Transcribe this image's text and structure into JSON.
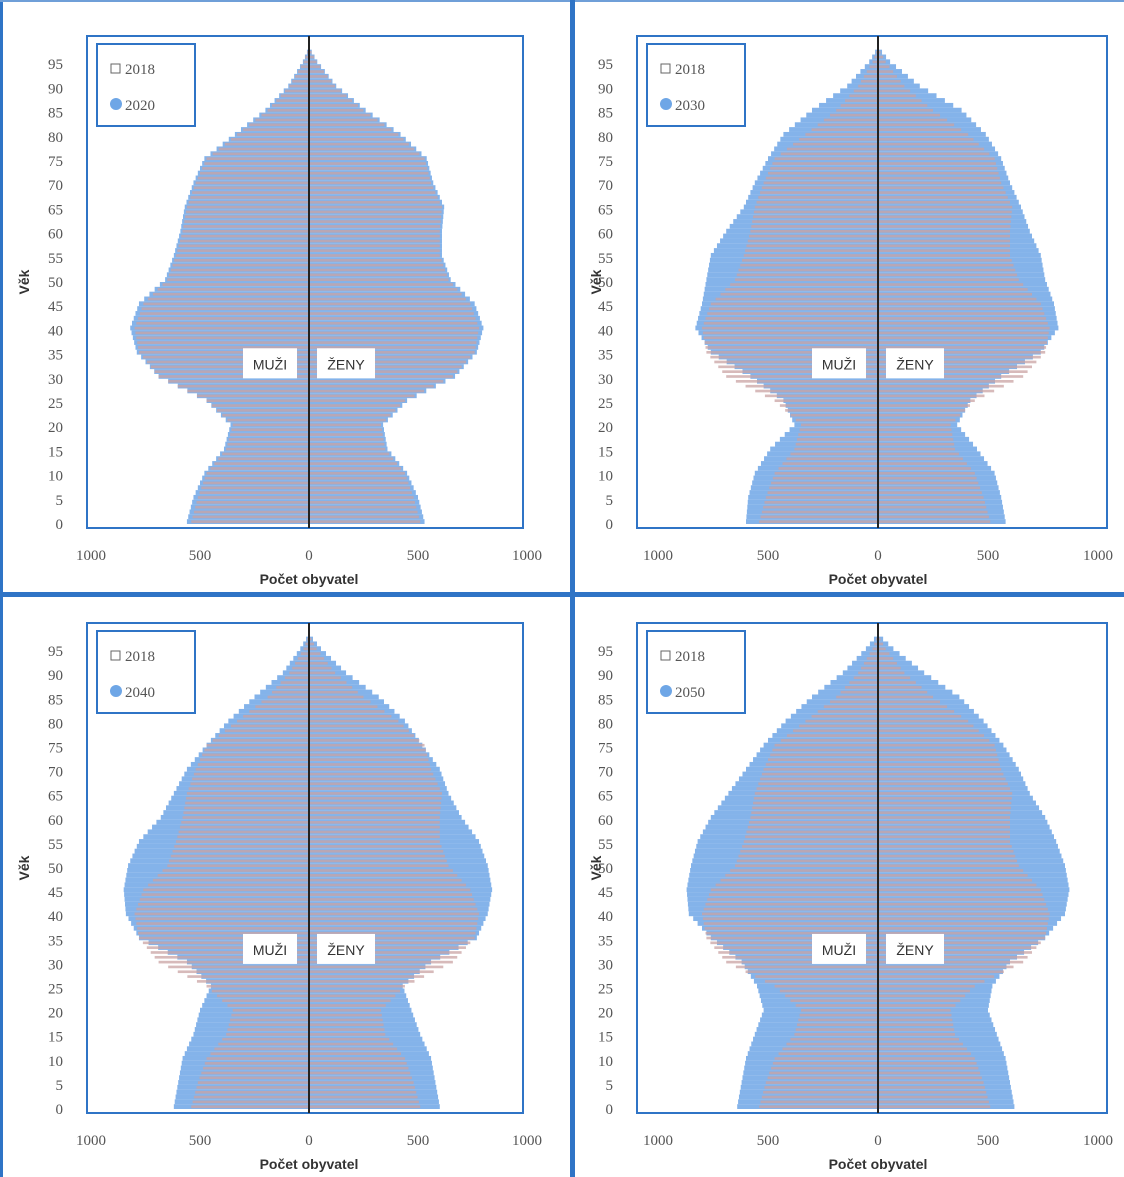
{
  "colors": {
    "frame": "#2f74c6",
    "bars_2018": "#c9a3a3",
    "bars_projection": "#6ea6e6",
    "axis": "#222222",
    "text": "#555555"
  },
  "chart_data": [
    {
      "type": "bar",
      "orientation": "population-pyramid",
      "legend": [
        "2018",
        "2020"
      ],
      "legend_position": "top-left",
      "xlabel": "Počet obyvatel",
      "ylabel": "Věk",
      "xticks": [
        "1000",
        "500",
        "0",
        "500",
        "1000"
      ],
      "xlim": [
        -1000,
        1000
      ],
      "yticks": [
        "0",
        "5",
        "10",
        "15",
        "20",
        "25",
        "30",
        "35",
        "40",
        "45",
        "50",
        "55",
        "60",
        "65",
        "70",
        "75",
        "80",
        "85",
        "90",
        "95"
      ],
      "ylim": [
        0,
        100
      ],
      "left_label": "MUŽI",
      "right_label": "ŽENY",
      "series": [
        {
          "name": "2018",
          "ages": [
            0,
            5,
            10,
            15,
            20,
            25,
            30,
            35,
            40,
            45,
            50,
            55,
            60,
            65,
            70,
            75,
            80,
            85,
            90,
            95,
            98
          ],
          "men": [
            540,
            510,
            470,
            380,
            350,
            470,
            690,
            780,
            800,
            760,
            650,
            610,
            580,
            560,
            520,
            470,
            330,
            190,
            90,
            25,
            0
          ],
          "women": [
            510,
            480,
            440,
            350,
            330,
            440,
            660,
            760,
            780,
            740,
            640,
            600,
            600,
            610,
            560,
            530,
            410,
            250,
            120,
            35,
            0
          ]
        },
        {
          "name": "2020",
          "ages": [
            0,
            5,
            10,
            15,
            20,
            25,
            30,
            35,
            40,
            45,
            50,
            55,
            60,
            65,
            70,
            75,
            80,
            85,
            90,
            95,
            98
          ],
          "men": [
            560,
            530,
            480,
            390,
            360,
            470,
            690,
            790,
            820,
            780,
            660,
            620,
            590,
            570,
            530,
            480,
            340,
            200,
            95,
            28,
            0
          ],
          "women": [
            530,
            500,
            450,
            360,
            340,
            450,
            670,
            770,
            800,
            760,
            650,
            610,
            610,
            620,
            570,
            540,
            420,
            260,
            125,
            38,
            0
          ]
        }
      ]
    },
    {
      "type": "bar",
      "orientation": "population-pyramid",
      "legend": [
        "2018",
        "2030"
      ],
      "legend_position": "top-left",
      "xlabel": "Počet obyvatel",
      "ylabel": "Věk",
      "xticks": [
        "1000",
        "500",
        "0",
        "500",
        "1000"
      ],
      "xlim": [
        -1000,
        1000
      ],
      "yticks": [
        "0",
        "5",
        "10",
        "15",
        "20",
        "25",
        "30",
        "35",
        "40",
        "45",
        "50",
        "55",
        "60",
        "65",
        "70",
        "75",
        "80",
        "85",
        "90",
        "95"
      ],
      "ylim": [
        0,
        100
      ],
      "left_label": "MUŽI",
      "right_label": "ŽENY",
      "series": [
        {
          "name": "2018",
          "ages": [
            0,
            5,
            10,
            15,
            20,
            25,
            30,
            35,
            40,
            45,
            50,
            55,
            60,
            65,
            70,
            75,
            80,
            85,
            90,
            95,
            98
          ],
          "men": [
            540,
            510,
            470,
            380,
            350,
            470,
            690,
            780,
            800,
            760,
            650,
            610,
            580,
            560,
            520,
            470,
            330,
            190,
            90,
            25,
            0
          ],
          "women": [
            510,
            480,
            440,
            350,
            330,
            440,
            660,
            760,
            780,
            740,
            640,
            600,
            600,
            610,
            560,
            530,
            410,
            250,
            120,
            35,
            0
          ]
        },
        {
          "name": "2030",
          "ages": [
            0,
            5,
            10,
            15,
            20,
            25,
            30,
            35,
            40,
            45,
            50,
            55,
            60,
            65,
            70,
            75,
            80,
            85,
            90,
            95,
            98
          ],
          "men": [
            600,
            590,
            560,
            490,
            380,
            430,
            580,
            760,
            830,
            800,
            780,
            760,
            690,
            610,
            560,
            500,
            430,
            300,
            140,
            40,
            0
          ],
          "women": [
            580,
            560,
            530,
            450,
            360,
            420,
            560,
            740,
            820,
            800,
            760,
            740,
            690,
            650,
            600,
            560,
            490,
            380,
            190,
            55,
            0
          ]
        }
      ]
    },
    {
      "type": "bar",
      "orientation": "population-pyramid",
      "legend": [
        "2018",
        "2040"
      ],
      "legend_position": "top-left",
      "xlabel": "Počet obyvatel",
      "ylabel": "Věk",
      "xticks": [
        "1000",
        "500",
        "0",
        "500",
        "1000"
      ],
      "xlim": [
        -1000,
        1000
      ],
      "yticks": [
        "0",
        "5",
        "10",
        "15",
        "20",
        "25",
        "30",
        "35",
        "40",
        "45",
        "50",
        "55",
        "60",
        "65",
        "70",
        "75",
        "80",
        "85",
        "90",
        "95"
      ],
      "ylim": [
        0,
        100
      ],
      "left_label": "MUŽI",
      "right_label": "ŽENY",
      "series": [
        {
          "name": "2018",
          "ages": [
            0,
            5,
            10,
            15,
            20,
            25,
            30,
            35,
            40,
            45,
            50,
            55,
            60,
            65,
            70,
            75,
            80,
            85,
            90,
            95,
            98
          ],
          "men": [
            540,
            510,
            470,
            380,
            350,
            470,
            690,
            780,
            800,
            760,
            650,
            610,
            580,
            560,
            520,
            470,
            330,
            190,
            90,
            25,
            0
          ],
          "women": [
            510,
            480,
            440,
            350,
            330,
            440,
            660,
            760,
            780,
            740,
            640,
            600,
            600,
            610,
            560,
            530,
            410,
            250,
            120,
            35,
            0
          ]
        },
        {
          "name": "2040",
          "ages": [
            0,
            5,
            10,
            15,
            20,
            25,
            30,
            35,
            40,
            45,
            50,
            55,
            60,
            65,
            70,
            75,
            80,
            85,
            90,
            95,
            98
          ],
          "men": [
            620,
            600,
            580,
            530,
            500,
            450,
            560,
            780,
            840,
            850,
            830,
            780,
            680,
            620,
            560,
            470,
            370,
            250,
            120,
            40,
            0
          ],
          "women": [
            600,
            580,
            560,
            510,
            470,
            430,
            560,
            770,
            820,
            840,
            820,
            780,
            700,
            640,
            600,
            520,
            440,
            320,
            170,
            55,
            0
          ]
        }
      ]
    },
    {
      "type": "bar",
      "orientation": "population-pyramid",
      "legend": [
        "2018",
        "2050"
      ],
      "legend_position": "top-left",
      "xlabel": "Počet obyvatel",
      "ylabel": "Věk",
      "xticks": [
        "1000",
        "500",
        "0",
        "500",
        "1000"
      ],
      "xlim": [
        -1000,
        1000
      ],
      "yticks": [
        "0",
        "5",
        "10",
        "15",
        "20",
        "25",
        "30",
        "35",
        "40",
        "45",
        "50",
        "55",
        "60",
        "65",
        "70",
        "75",
        "80",
        "85",
        "90",
        "95"
      ],
      "ylim": [
        0,
        100
      ],
      "left_label": "MUŽI",
      "right_label": "ŽENY",
      "series": [
        {
          "name": "2018",
          "ages": [
            0,
            5,
            10,
            15,
            20,
            25,
            30,
            35,
            40,
            45,
            50,
            55,
            60,
            65,
            70,
            75,
            80,
            85,
            90,
            95,
            98
          ],
          "men": [
            540,
            510,
            470,
            380,
            350,
            470,
            690,
            780,
            800,
            760,
            650,
            610,
            580,
            560,
            520,
            470,
            330,
            190,
            90,
            25,
            0
          ],
          "women": [
            510,
            480,
            440,
            350,
            330,
            440,
            660,
            760,
            780,
            740,
            640,
            600,
            600,
            610,
            560,
            530,
            410,
            250,
            120,
            35,
            0
          ]
        },
        {
          "name": "2050",
          "ages": [
            0,
            5,
            10,
            15,
            20,
            25,
            30,
            35,
            40,
            45,
            50,
            55,
            60,
            65,
            70,
            75,
            80,
            85,
            90,
            95,
            98
          ],
          "men": [
            640,
            620,
            600,
            560,
            520,
            550,
            620,
            760,
            860,
            870,
            850,
            820,
            760,
            680,
            600,
            520,
            420,
            300,
            160,
            55,
            0
          ],
          "women": [
            620,
            600,
            580,
            540,
            500,
            520,
            600,
            760,
            850,
            870,
            850,
            810,
            760,
            690,
            640,
            570,
            480,
            370,
            210,
            70,
            0
          ]
        }
      ]
    }
  ]
}
